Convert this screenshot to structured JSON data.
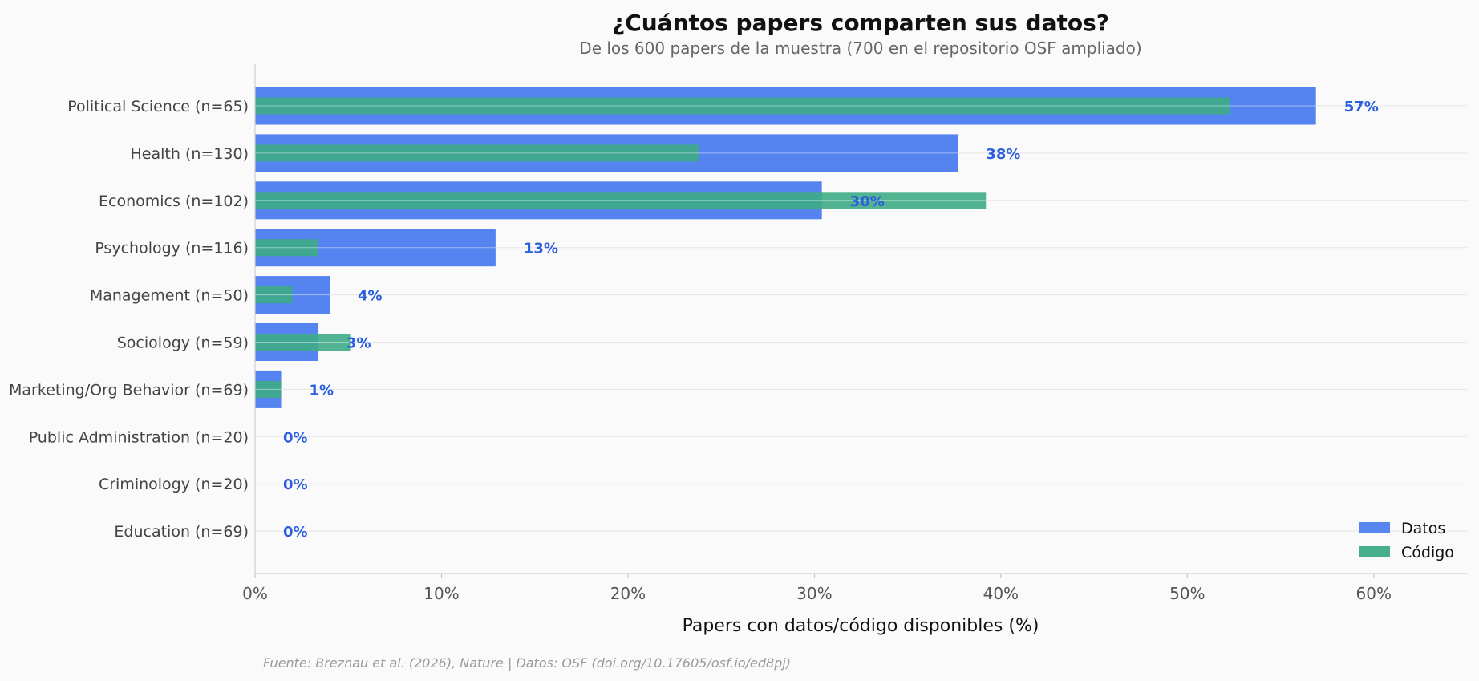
{
  "chart_data": {
    "type": "bar",
    "orientation": "horizontal",
    "title": "¿Cuántos papers comparten sus datos?",
    "subtitle": "De los 600 papers de la muestra (700 en el repositorio OSF ampliado)",
    "xlabel": "Papers con datos/código disponibles (%)",
    "ylabel": "",
    "xlim": [
      0,
      65
    ],
    "xticks": [
      0,
      10,
      20,
      30,
      40,
      50,
      60
    ],
    "xtick_labels": [
      "0%",
      "10%",
      "20%",
      "30%",
      "40%",
      "50%",
      "60%"
    ],
    "grid": "horizontal lines",
    "categories": [
      "Political Science (n=65)",
      "Health (n=130)",
      "Economics (n=102)",
      "Psychology (n=116)",
      "Management (n=50)",
      "Sociology (n=59)",
      "Marketing/Org Behavior (n=69)",
      "Public Administration (n=20)",
      "Criminology (n=20)",
      "Education (n=69)"
    ],
    "series": [
      {
        "name": "Datos",
        "color": "#4f7fef",
        "values": [
          56.9,
          37.7,
          30.4,
          12.9,
          4.0,
          3.4,
          1.4,
          0,
          0,
          0
        ]
      },
      {
        "name": "Código",
        "color": "#3eab85",
        "values": [
          52.3,
          23.8,
          39.2,
          3.4,
          2.0,
          5.1,
          1.4,
          0,
          0,
          0
        ]
      }
    ],
    "data_labels": [
      "57%",
      "38%",
      "30%",
      "13%",
      "4%",
      "3%",
      "1%",
      "0%",
      "0%",
      "0%"
    ],
    "data_label_color": "#2b5fe0",
    "legend": {
      "placement": "bottom-right",
      "entries": [
        "Datos",
        "Código"
      ]
    },
    "source": "Fuente: Breznau et al. (2026), Nature | Datos: OSF (doi.org/10.17605/osf.io/ed8pj)"
  }
}
